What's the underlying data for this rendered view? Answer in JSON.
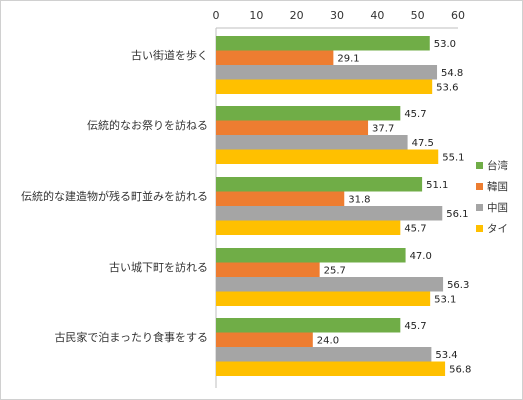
{
  "chart_data": {
    "type": "bar",
    "orientation": "horizontal",
    "categories": [
      "古い街道を歩く",
      "伝統的なお祭りを訪ねる",
      "伝統的な建造物が残る町並みを訪れる",
      "古い城下町を訪れる",
      "古民家で泊まったり食事をする"
    ],
    "series": [
      {
        "name": "台湾",
        "color": "#70ad47",
        "values": [
          53.0,
          45.7,
          51.1,
          47.0,
          45.7
        ]
      },
      {
        "name": "韓国",
        "color": "#ed7d31",
        "values": [
          29.1,
          37.7,
          31.8,
          25.7,
          24.0
        ]
      },
      {
        "name": "中国",
        "color": "#a5a5a5",
        "values": [
          54.8,
          47.5,
          56.1,
          56.3,
          53.4
        ]
      },
      {
        "name": "タイ",
        "color": "#ffc000",
        "values": [
          53.6,
          55.1,
          45.7,
          53.1,
          56.8
        ]
      }
    ],
    "xlim": [
      0,
      60
    ],
    "ticks": [
      0,
      10,
      20,
      30,
      40,
      50,
      60
    ],
    "axis_position": "top",
    "legend_position": "right",
    "grid": false,
    "title": "",
    "xlabel": "",
    "ylabel": ""
  }
}
